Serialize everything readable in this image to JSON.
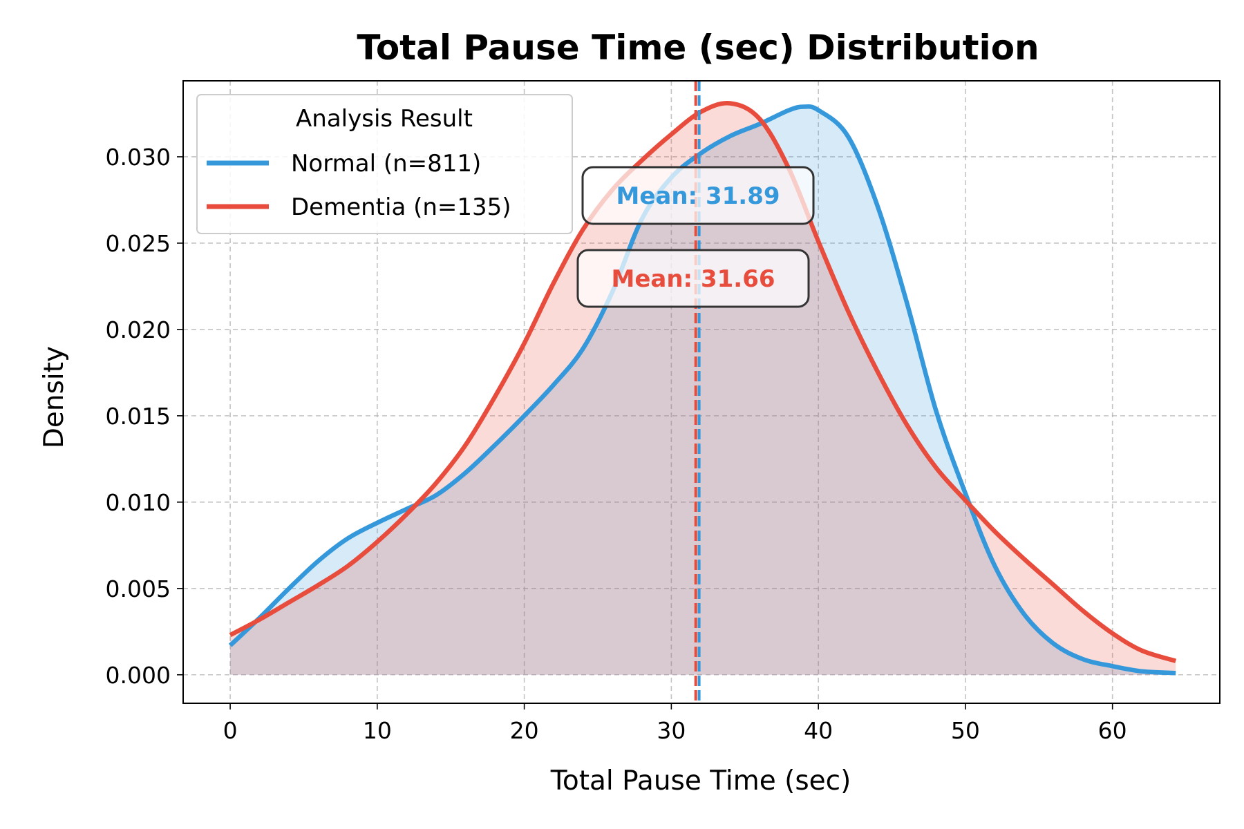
{
  "chart_data": {
    "type": "area",
    "title": "Total Pause Time (sec) Distribution",
    "xlabel": "Total Pause Time (sec)",
    "ylabel": "Density",
    "xlim": [
      -3.2,
      67.3
    ],
    "ylim": [
      -0.00165,
      0.0344
    ],
    "xticks": [
      0,
      10,
      20,
      30,
      40,
      50,
      60
    ],
    "yticks": [
      0.0,
      0.005,
      0.01,
      0.015,
      0.02,
      0.025,
      0.03
    ],
    "ytick_labels": [
      "0.000",
      "0.005",
      "0.010",
      "0.015",
      "0.020",
      "0.025",
      "0.030"
    ],
    "grid": true,
    "legend": {
      "title": "Analysis Result",
      "position": "top-left"
    },
    "series": [
      {
        "name": "Normal (n=811)",
        "color": "#3498db",
        "mean": 31.89,
        "mean_label": "Mean: 31.89",
        "x": [
          0,
          2,
          4,
          6,
          8,
          10,
          12,
          14,
          16,
          18,
          20,
          22,
          24,
          26,
          28,
          30,
          32,
          34,
          36,
          38,
          39,
          40,
          42,
          44,
          46,
          48,
          50,
          52,
          54,
          56,
          58,
          60,
          62,
          64.3
        ],
        "y": [
          0.0017,
          0.0033,
          0.005,
          0.0066,
          0.0079,
          0.0088,
          0.0096,
          0.0104,
          0.0117,
          0.0133,
          0.015,
          0.0168,
          0.0189,
          0.0222,
          0.0264,
          0.0288,
          0.0302,
          0.0312,
          0.0319,
          0.0327,
          0.0329,
          0.0327,
          0.0312,
          0.0272,
          0.0216,
          0.0153,
          0.0105,
          0.0063,
          0.0035,
          0.0018,
          0.0009,
          0.0005,
          0.0002,
          0.0001
        ]
      },
      {
        "name": "Dementia (n=135)",
        "color": "#e74c3c",
        "mean": 31.66,
        "mean_label": "Mean: 31.66",
        "x": [
          0,
          2,
          4,
          6,
          8,
          10,
          12,
          14,
          16,
          18,
          20,
          22,
          24,
          26,
          28,
          30,
          32,
          34,
          36,
          38,
          40,
          42,
          44,
          46,
          48,
          50,
          52,
          54,
          56,
          58,
          60,
          62,
          64.3
        ],
        "y": [
          0.0023,
          0.0032,
          0.0042,
          0.0052,
          0.0063,
          0.0077,
          0.0093,
          0.0111,
          0.0133,
          0.0161,
          0.0192,
          0.0227,
          0.0258,
          0.0281,
          0.0298,
          0.0313,
          0.0326,
          0.0331,
          0.0322,
          0.0293,
          0.0251,
          0.0211,
          0.0176,
          0.0145,
          0.012,
          0.0101,
          0.0083,
          0.0067,
          0.0052,
          0.0037,
          0.0024,
          0.0014,
          0.0008
        ]
      }
    ]
  }
}
